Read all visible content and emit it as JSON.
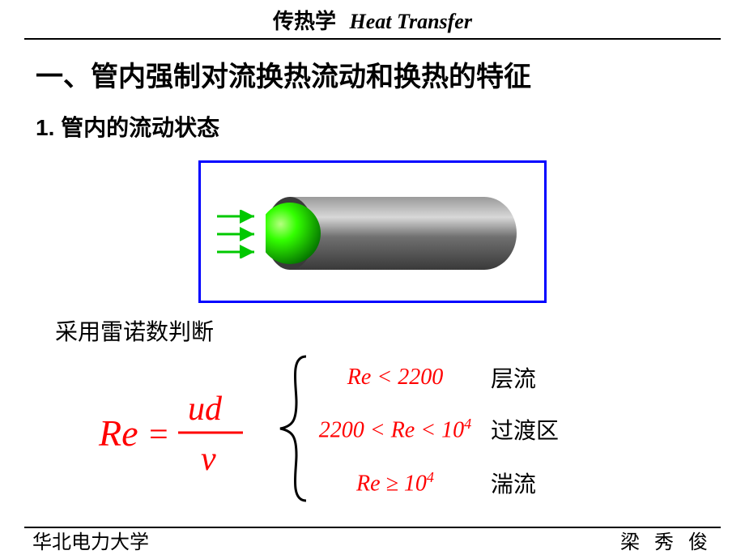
{
  "header": {
    "title_cn": "传热学",
    "title_en": "Heat Transfer"
  },
  "section": {
    "title": "一、管内强制对流换热流动和换热的特征"
  },
  "subsection": {
    "title": "1. 管内的流动状态"
  },
  "diagram": {
    "border_color": "#0000ff",
    "arrow_color": "#00c800",
    "pipe_body_light": "#a8a8a8",
    "pipe_body_dark": "#4a4a4a",
    "sphere_light": "#66ff33",
    "sphere_dark": "#008800"
  },
  "reynolds": {
    "label": "采用雷诺数判断",
    "formula_color": "#ff0000",
    "conditions": [
      {
        "math_html": "<i>Re</i> &lt; 2200",
        "label": "层流"
      },
      {
        "math_html": "2200 &lt; <i>Re</i> &lt; 10<sup>4</sup>",
        "label": "过渡区"
      },
      {
        "math_html": "<i>Re</i> &ge; 10<sup>4</sup>",
        "label": "湍流"
      }
    ]
  },
  "footer": {
    "left": "华北电力大学",
    "right": "梁 秀 俊"
  }
}
